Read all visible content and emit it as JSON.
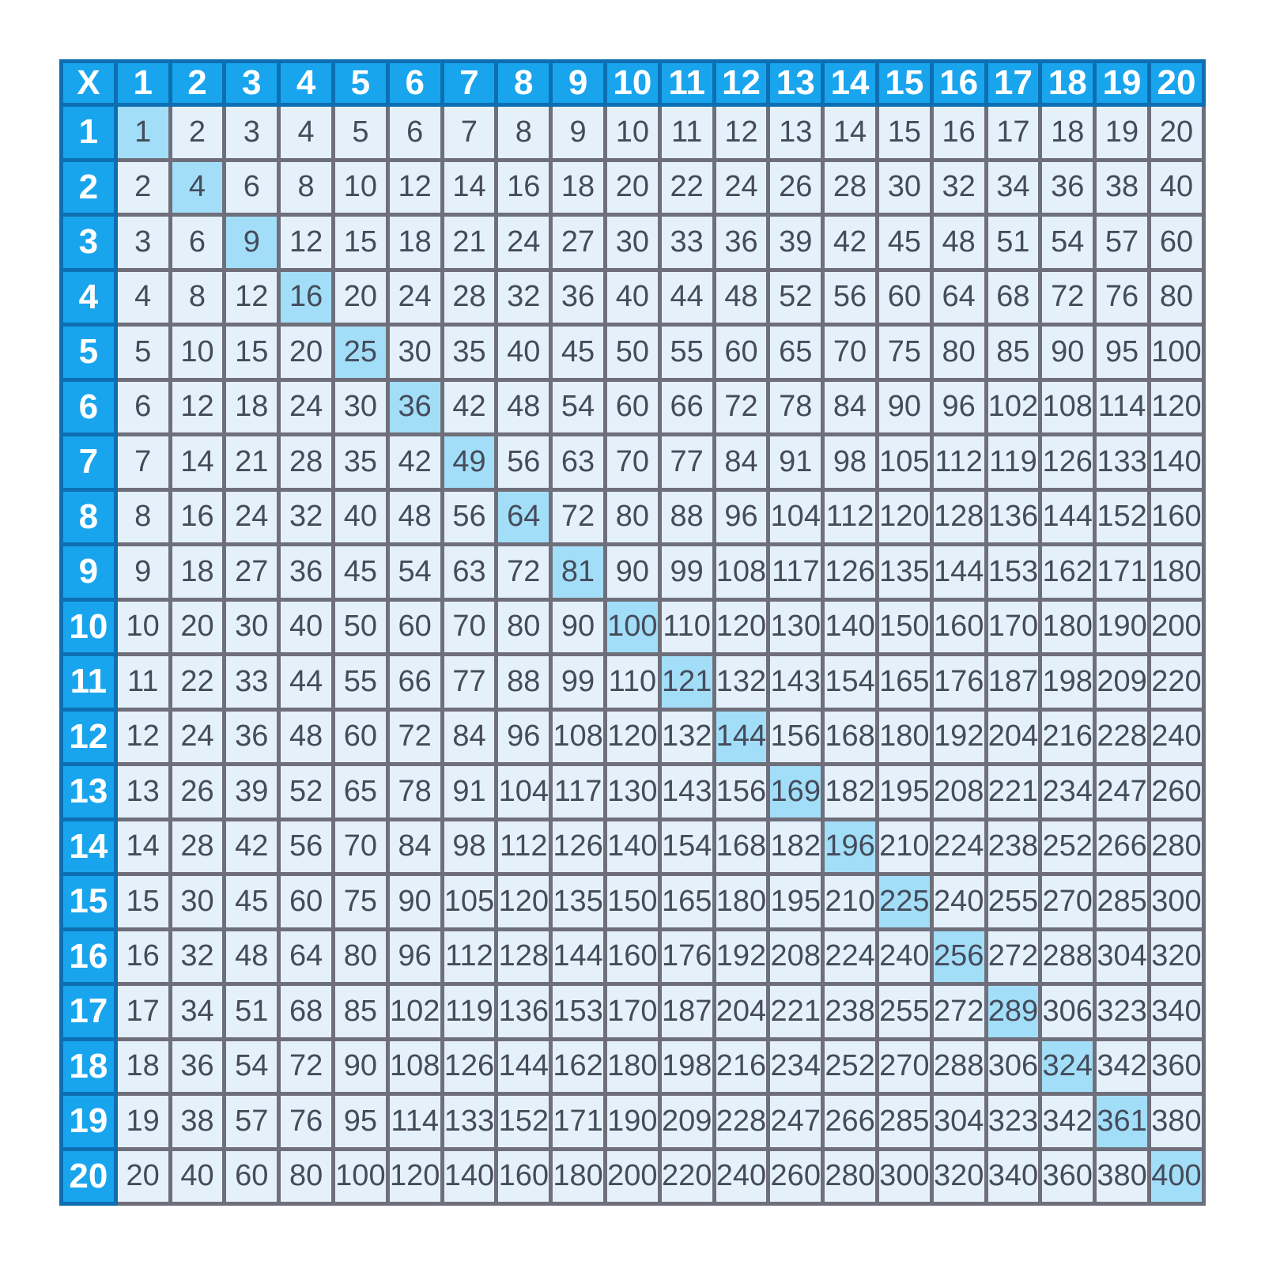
{
  "chart_data": {
    "type": "table",
    "corner_label": "X",
    "column_headers": [
      "1",
      "2",
      "3",
      "4",
      "5",
      "6",
      "7",
      "8",
      "9",
      "10",
      "11",
      "12",
      "13",
      "14",
      "15",
      "16",
      "17",
      "18",
      "19",
      "20"
    ],
    "row_headers": [
      "1",
      "2",
      "3",
      "4",
      "5",
      "6",
      "7",
      "8",
      "9",
      "10",
      "11",
      "12",
      "13",
      "14",
      "15",
      "16",
      "17",
      "18",
      "19",
      "20"
    ],
    "rows": [
      [
        1,
        2,
        3,
        4,
        5,
        6,
        7,
        8,
        9,
        10,
        11,
        12,
        13,
        14,
        15,
        16,
        17,
        18,
        19,
        20
      ],
      [
        2,
        4,
        6,
        8,
        10,
        12,
        14,
        16,
        18,
        20,
        22,
        24,
        26,
        28,
        30,
        32,
        34,
        36,
        38,
        40
      ],
      [
        3,
        6,
        9,
        12,
        15,
        18,
        21,
        24,
        27,
        30,
        33,
        36,
        39,
        42,
        45,
        48,
        51,
        54,
        57,
        60
      ],
      [
        4,
        8,
        12,
        16,
        20,
        24,
        28,
        32,
        36,
        40,
        44,
        48,
        52,
        56,
        60,
        64,
        68,
        72,
        76,
        80
      ],
      [
        5,
        10,
        15,
        20,
        25,
        30,
        35,
        40,
        45,
        50,
        55,
        60,
        65,
        70,
        75,
        80,
        85,
        90,
        95,
        100
      ],
      [
        6,
        12,
        18,
        24,
        30,
        36,
        42,
        48,
        54,
        60,
        66,
        72,
        78,
        84,
        90,
        96,
        102,
        108,
        114,
        120
      ],
      [
        7,
        14,
        21,
        28,
        35,
        42,
        49,
        56,
        63,
        70,
        77,
        84,
        91,
        98,
        105,
        112,
        119,
        126,
        133,
        140
      ],
      [
        8,
        16,
        24,
        32,
        40,
        48,
        56,
        64,
        72,
        80,
        88,
        96,
        104,
        112,
        120,
        128,
        136,
        144,
        152,
        160
      ],
      [
        9,
        18,
        27,
        36,
        45,
        54,
        63,
        72,
        81,
        90,
        99,
        108,
        117,
        126,
        135,
        144,
        153,
        162,
        171,
        180
      ],
      [
        10,
        20,
        30,
        40,
        50,
        60,
        70,
        80,
        90,
        100,
        110,
        120,
        130,
        140,
        150,
        160,
        170,
        180,
        190,
        200
      ],
      [
        11,
        22,
        33,
        44,
        55,
        66,
        77,
        88,
        99,
        110,
        121,
        132,
        143,
        154,
        165,
        176,
        187,
        198,
        209,
        220
      ],
      [
        12,
        24,
        36,
        48,
        60,
        72,
        84,
        96,
        108,
        120,
        132,
        144,
        156,
        168,
        180,
        192,
        204,
        216,
        228,
        240
      ],
      [
        13,
        26,
        39,
        52,
        65,
        78,
        91,
        104,
        117,
        130,
        143,
        156,
        169,
        182,
        195,
        208,
        221,
        234,
        247,
        260
      ],
      [
        14,
        28,
        42,
        56,
        70,
        84,
        98,
        112,
        126,
        140,
        154,
        168,
        182,
        196,
        210,
        224,
        238,
        252,
        266,
        280
      ],
      [
        15,
        30,
        45,
        60,
        75,
        90,
        105,
        120,
        135,
        150,
        165,
        180,
        195,
        210,
        225,
        240,
        255,
        270,
        285,
        300
      ],
      [
        16,
        32,
        48,
        64,
        80,
        96,
        112,
        128,
        144,
        160,
        176,
        192,
        208,
        224,
        240,
        256,
        272,
        288,
        304,
        320
      ],
      [
        17,
        34,
        51,
        68,
        85,
        102,
        119,
        136,
        153,
        170,
        187,
        204,
        221,
        238,
        255,
        272,
        289,
        306,
        323,
        340
      ],
      [
        18,
        36,
        54,
        72,
        90,
        108,
        126,
        144,
        162,
        180,
        198,
        216,
        234,
        252,
        270,
        288,
        306,
        324,
        342,
        360
      ],
      [
        19,
        38,
        57,
        76,
        95,
        114,
        133,
        152,
        171,
        190,
        209,
        228,
        247,
        266,
        285,
        304,
        323,
        342,
        361,
        380
      ],
      [
        20,
        40,
        60,
        80,
        100,
        120,
        140,
        160,
        180,
        200,
        220,
        240,
        260,
        280,
        300,
        320,
        340,
        360,
        380,
        400
      ]
    ],
    "highlight_rule": "diagonal cells (perfect squares) shaded",
    "legend_position": "none",
    "grid": true
  },
  "colors": {
    "page_bg": "#ffffff",
    "header_bg": "#19a5ee",
    "header_border": "#0d6fb2",
    "header_text": "#ffffff",
    "cell_bg": "#e4f1fa",
    "cell_border": "#6f6f7b",
    "cell_text": "#454b5b",
    "square_highlight_bg": "#a3def8"
  }
}
